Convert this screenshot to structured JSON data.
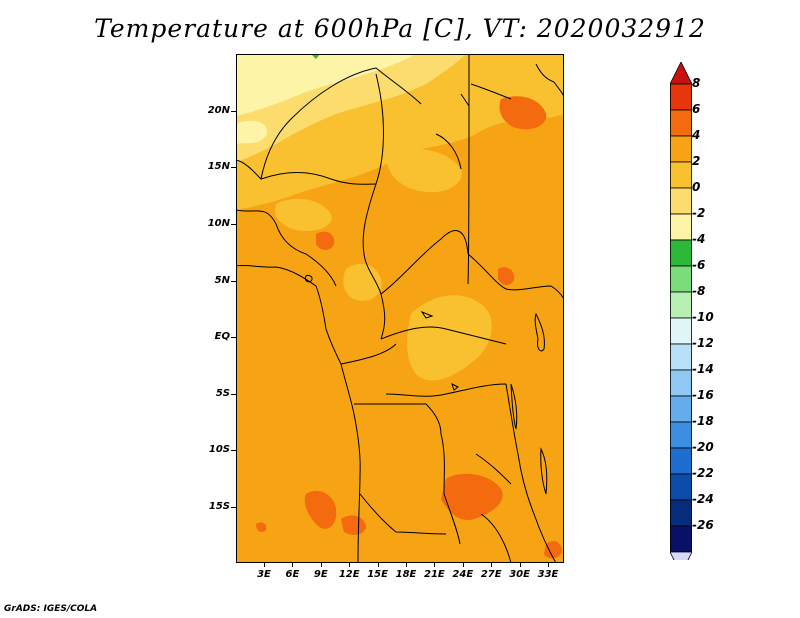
{
  "title": "Temperature at 600hPa [C], VT: 2020032912",
  "footer": "GrADS: IGES/COLA",
  "lat_labels": [
    "20N",
    "15N",
    "10N",
    "5N",
    "EQ",
    "5S",
    "10S",
    "15S"
  ],
  "lon_labels": [
    "3E",
    "6E",
    "9E",
    "12E",
    "15E",
    "18E",
    "21E",
    "24E",
    "27E",
    "30E",
    "33E"
  ],
  "colorbar": {
    "labels": [
      "8",
      "6",
      "4",
      "2",
      "0",
      "-2",
      "-4",
      "-6",
      "-8",
      "-10",
      "-12",
      "-14",
      "-16",
      "-18",
      "-20",
      "-22",
      "-24",
      "-26"
    ],
    "colors_top_to_bottom": [
      "#c8100e",
      "#e8360c",
      "#f46a0e",
      "#f6a314",
      "#f9c030",
      "#fbdc6c",
      "#fdf4a8",
      "#2cb838",
      "#7adc7a",
      "#b8f0b4",
      "#e2f6f8",
      "#b8e0f8",
      "#90c8f4",
      "#64acec",
      "#3c8ee0",
      "#1e6ed0",
      "#0c4caa",
      "#062c7c",
      "#0a1068"
    ],
    "top_arrow_color": "#c8100e",
    "bottom_arrow_color": "#d8d8f8"
  },
  "map": {
    "dominant_value_range": "2 to 4",
    "ocean_color": "#f6a314",
    "warm_patch_color": "#f46a0e",
    "cool_band_colors": [
      "#f9c030",
      "#fbdc6c",
      "#fdf4a8"
    ]
  }
}
